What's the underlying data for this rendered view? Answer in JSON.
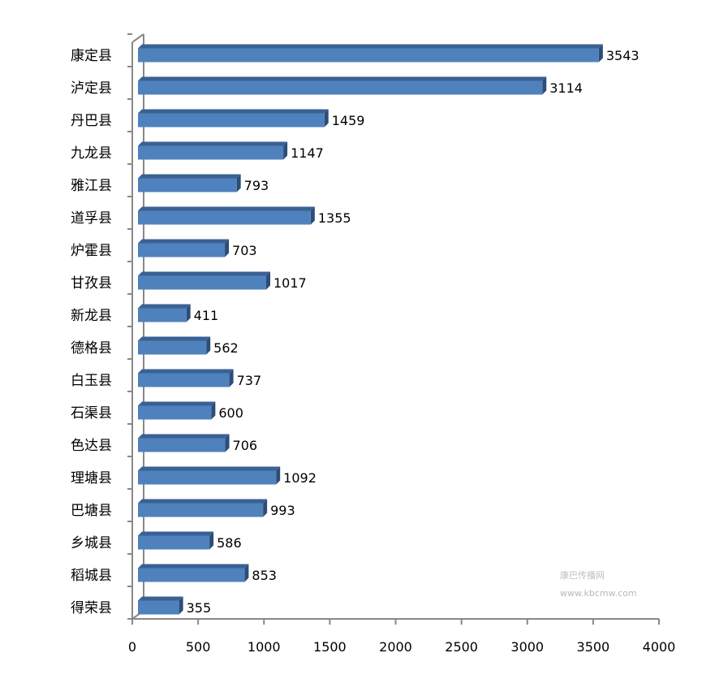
{
  "chart_data": {
    "type": "bar",
    "orientation": "horizontal",
    "style": "3d",
    "categories": [
      "康定县",
      "泸定县",
      "丹巴县",
      "九龙县",
      "雅江县",
      "道孚县",
      "炉霍县",
      "甘孜县",
      "新龙县",
      "德格县",
      "白玉县",
      "石渠县",
      "色达县",
      "理塘县",
      "巴塘县",
      "乡城县",
      "稻城县",
      "得荣县"
    ],
    "values": [
      3543,
      3114,
      1459,
      1147,
      793,
      1355,
      703,
      1017,
      411,
      562,
      737,
      600,
      706,
      1092,
      993,
      586,
      853,
      355
    ],
    "xlim": [
      0,
      4000
    ],
    "xticks": [
      "0",
      "500",
      "1000",
      "1500",
      "2000",
      "2500",
      "3000",
      "3500",
      "4000"
    ],
    "data_labels": true,
    "grid": false,
    "legend": "none",
    "colors": {
      "bar": "#4f81bd",
      "bar_top": "#3a6194",
      "bar_side": "#2c4d75",
      "axis": "#888888"
    }
  },
  "watermark": {
    "text": "康巴传播网",
    "url": "www.kbcmw.com"
  }
}
